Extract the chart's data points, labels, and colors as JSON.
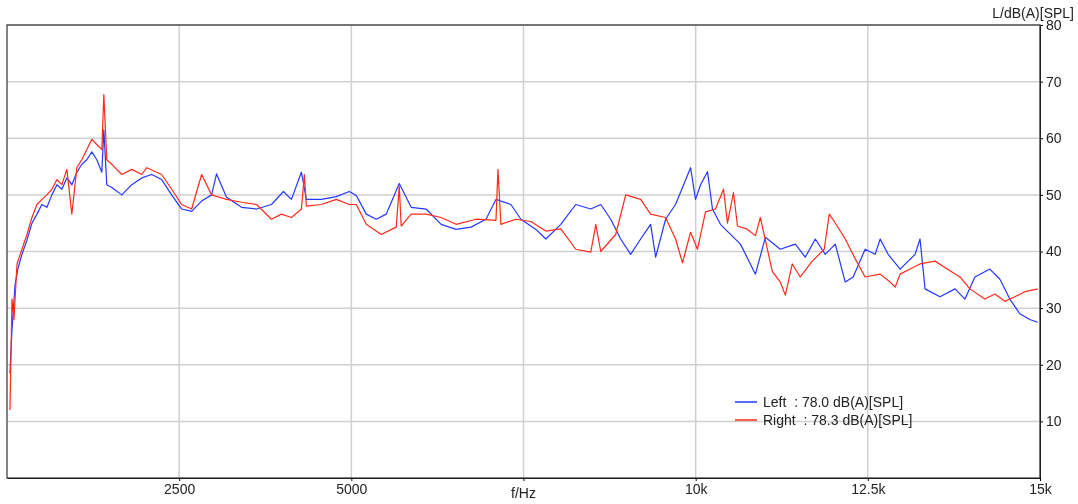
{
  "chart_data": {
    "type": "line",
    "xlabel": "f/Hz",
    "ylabel": "L/dB(A)[SPL]",
    "xlim": [
      0,
      15000
    ],
    "ylim": [
      0,
      80
    ],
    "xticks": [
      2500,
      5000,
      {
        "value": 7500,
        "label": null
      },
      {
        "value": 10000,
        "label": "10k"
      },
      {
        "value": 12500,
        "label": "12.5k"
      },
      {
        "value": 15000,
        "label": "15k"
      }
    ],
    "yticks": [
      10,
      20,
      30,
      40,
      50,
      60,
      70,
      80
    ],
    "grid": true,
    "legend": "bottom right",
    "line_style": "solid",
    "marker": "none",
    "series": [
      {
        "name": "Left  : 78.0 dB(A)[SPL]",
        "color": "#2338ff",
        "x": [
          43,
          72,
          116,
          159,
          217,
          290,
          362,
          435,
          507,
          580,
          652,
          725,
          797,
          869,
          942,
          1014,
          1087,
          1159,
          1232,
          1304,
          1377,
          1406,
          1449,
          1522,
          1667,
          1812,
          1957,
          2101,
          2246,
          2391,
          2536,
          2681,
          2826,
          2971,
          3043,
          3188,
          3406,
          3623,
          3840,
          4014,
          4130,
          4275,
          4347,
          4565,
          4782,
          4970,
          5072,
          5217,
          5362,
          5507,
          5696,
          5869,
          6087,
          6304,
          6521,
          6739,
          6955,
          7100,
          7317,
          7462,
          7680,
          7825,
          8042,
          8259,
          8477,
          8622,
          8767,
          8911,
          9056,
          9201,
          9346,
          9419,
          9563,
          9708,
          9926,
          9998,
          10071,
          10172,
          10244,
          10360,
          10650,
          10868,
          11012,
          11229,
          11447,
          11592,
          11737,
          11882,
          12027,
          12172,
          12287,
          12461,
          12606,
          12679,
          12795,
          12969,
          13186,
          13258,
          13331,
          13548,
          13766,
          13910,
          14055,
          14272,
          14418,
          14562,
          14707,
          14852,
          14968
        ],
        "values": [
          18.5,
          26,
          34,
          37,
          39.5,
          42,
          45,
          46.6,
          48.3,
          47.8,
          50,
          51.8,
          51,
          53,
          51.8,
          54,
          55.4,
          56.2,
          57.6,
          56.2,
          54,
          61.5,
          51.8,
          51.3,
          50,
          51.8,
          53,
          53.6,
          52.7,
          50,
          47.5,
          47.1,
          48.9,
          50,
          53.7,
          49.6,
          47.8,
          47.5,
          48.3,
          50.6,
          49.2,
          54,
          49.2,
          49.2,
          49.7,
          50.6,
          49.9,
          46.6,
          45.7,
          46.6,
          52,
          47.8,
          47.5,
          44.8,
          43.9,
          44.3,
          45.7,
          49.2,
          48.3,
          45.7,
          43.9,
          42.2,
          44.8,
          48.3,
          47.5,
          48.3,
          45.7,
          42.2,
          39.5,
          42.2,
          44.8,
          39,
          45.7,
          48.3,
          54.8,
          49.2,
          51.8,
          54.1,
          47.5,
          44.8,
          41.3,
          36,
          42.5,
          40.4,
          41.3,
          39,
          42.2,
          39.5,
          41.3,
          34.6,
          35.5,
          40.4,
          39.5,
          42.2,
          39.5,
          36.9,
          39.5,
          42.2,
          33.4,
          32,
          33.4,
          31.6,
          35.5,
          36.9,
          35.1,
          31.6,
          29,
          28,
          27.5
        ]
      },
      {
        "name": "Right  : 78.3 dB(A)[SPL]",
        "color": "#ff2a1a",
        "x": [
          43,
          72,
          101,
          145,
          217,
          290,
          362,
          435,
          507,
          580,
          652,
          725,
          797,
          869,
          942,
          1014,
          1087,
          1159,
          1232,
          1304,
          1377,
          1406,
          1449,
          1522,
          1667,
          1812,
          1957,
          2029,
          2246,
          2391,
          2536,
          2681,
          2826,
          2971,
          3188,
          3406,
          3623,
          3840,
          3985,
          4130,
          4275,
          4318,
          4347,
          4565,
          4782,
          4970,
          5072,
          5217,
          5434,
          5652,
          5696,
          5724,
          5869,
          6087,
          6304,
          6521,
          6811,
          7100,
          7129,
          7172,
          7389,
          7607,
          7825,
          8042,
          8259,
          8477,
          8550,
          8622,
          8839,
          8984,
          9201,
          9346,
          9563,
          9708,
          9809,
          9926,
          10027,
          10143,
          10288,
          10404,
          10462,
          10549,
          10607,
          10738,
          10868,
          10940,
          11012,
          11113,
          11229,
          11302,
          11403,
          11519,
          11693,
          11867,
          11940,
          12013,
          12172,
          12317,
          12461,
          12679,
          12824,
          12896,
          12969,
          13114,
          13258,
          13476,
          13693,
          13838,
          13983,
          14200,
          14345,
          14490,
          14635,
          14780,
          14968
        ],
        "values": [
          12,
          31.6,
          28,
          37.8,
          40.4,
          43,
          46,
          48.3,
          49.2,
          50,
          51,
          52.7,
          51.8,
          54.5,
          46.6,
          54.8,
          56.2,
          58,
          59.8,
          58.9,
          58,
          67.7,
          56.2,
          55.4,
          53.6,
          54.5,
          53.6,
          54.8,
          53.6,
          51,
          48.3,
          47.5,
          53.6,
          50,
          49.2,
          48.7,
          48.3,
          45.7,
          46.6,
          46,
          47.5,
          53.6,
          48,
          48.3,
          49.2,
          48.3,
          48.3,
          44.8,
          43,
          44.3,
          51.5,
          44.5,
          46.6,
          46.6,
          46,
          44.8,
          45.7,
          45.5,
          54.5,
          44.8,
          45.7,
          45.3,
          43.6,
          44,
          40.4,
          39.9,
          44.8,
          40,
          43,
          50,
          49.2,
          46.6,
          46,
          42.2,
          38,
          43.4,
          40.4,
          47,
          47.5,
          51,
          45,
          50.4,
          44.5,
          44,
          42.8,
          46,
          42,
          36.5,
          34.6,
          32.3,
          37.8,
          35.5,
          38.3,
          40.4,
          46.6,
          45.3,
          42.2,
          38.7,
          35.5,
          36,
          34.6,
          33.7,
          36,
          36.9,
          37.8,
          38.3,
          36.6,
          35.5,
          33.4,
          31.6,
          32.5,
          31.2,
          32,
          32.9,
          33.4
        ]
      }
    ]
  }
}
